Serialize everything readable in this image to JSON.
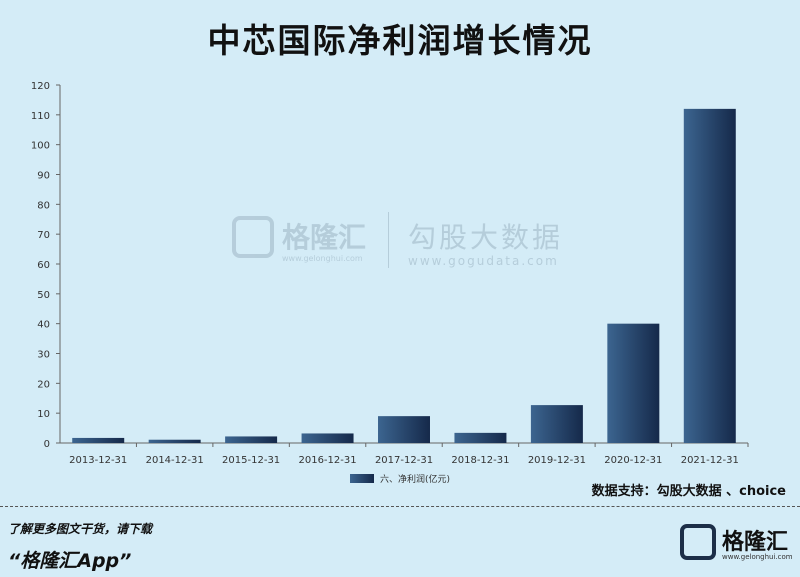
{
  "title": "中芯国际净利润增长情况",
  "watermark": {
    "brand": "格隆汇",
    "url": "www.gelonghui.com",
    "brand2": "勾股大数据",
    "url2": "www.gogudata.com"
  },
  "source": "数据支持：勾股大数据 、choice",
  "footer": {
    "text": "了解更多图文干货，请下载",
    "app": "“格隆汇App”",
    "logo_brand": "格隆汇",
    "logo_url": "www.gelonghui.com"
  },
  "colors": {
    "bar_light": "#3c6590",
    "bar_dark": "#15294a",
    "background": "#d4ecf7"
  },
  "chart_data": {
    "type": "bar",
    "categories": [
      "2013-12-31",
      "2014-12-31",
      "2015-12-31",
      "2016-12-31",
      "2017-12-31",
      "2018-12-31",
      "2019-12-31",
      "2020-12-31",
      "2021-12-31"
    ],
    "series": [
      {
        "name": "六、净利润(亿元)",
        "values": [
          1.7,
          1.1,
          2.2,
          3.2,
          9.0,
          3.4,
          12.7,
          40.0,
          112.0
        ]
      }
    ],
    "ylim": [
      0,
      120
    ],
    "yticks": [
      0,
      10,
      20,
      30,
      40,
      50,
      60,
      70,
      80,
      90,
      100,
      110,
      120
    ],
    "grid": false,
    "legend": "bottom-center"
  }
}
